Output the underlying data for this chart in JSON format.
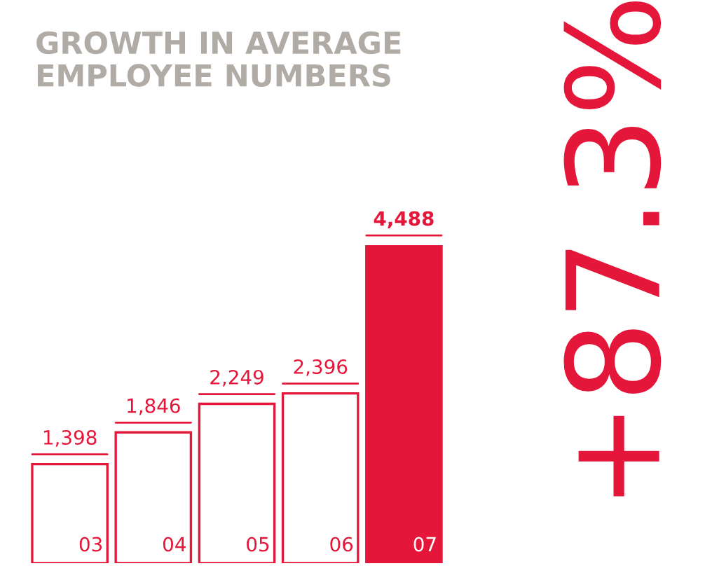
{
  "chart_data": {
    "type": "bar",
    "title": "GROWTH IN AVERAGE\nEMPLOYEE NUMBERS",
    "categories": [
      "03",
      "04",
      "05",
      "06",
      "07"
    ],
    "values": [
      1398,
      1846,
      2249,
      2396,
      4488
    ],
    "color": "#e4173a",
    "colors": [
      "#ffffff",
      "#ffffff",
      "#ffffff",
      "#ffffff",
      "#e4173a"
    ],
    "value_labels": [
      "1,398",
      "1,846",
      "2,249",
      "2,396",
      "4,488"
    ],
    "annotations": [
      "+87.3%"
    ]
  }
}
